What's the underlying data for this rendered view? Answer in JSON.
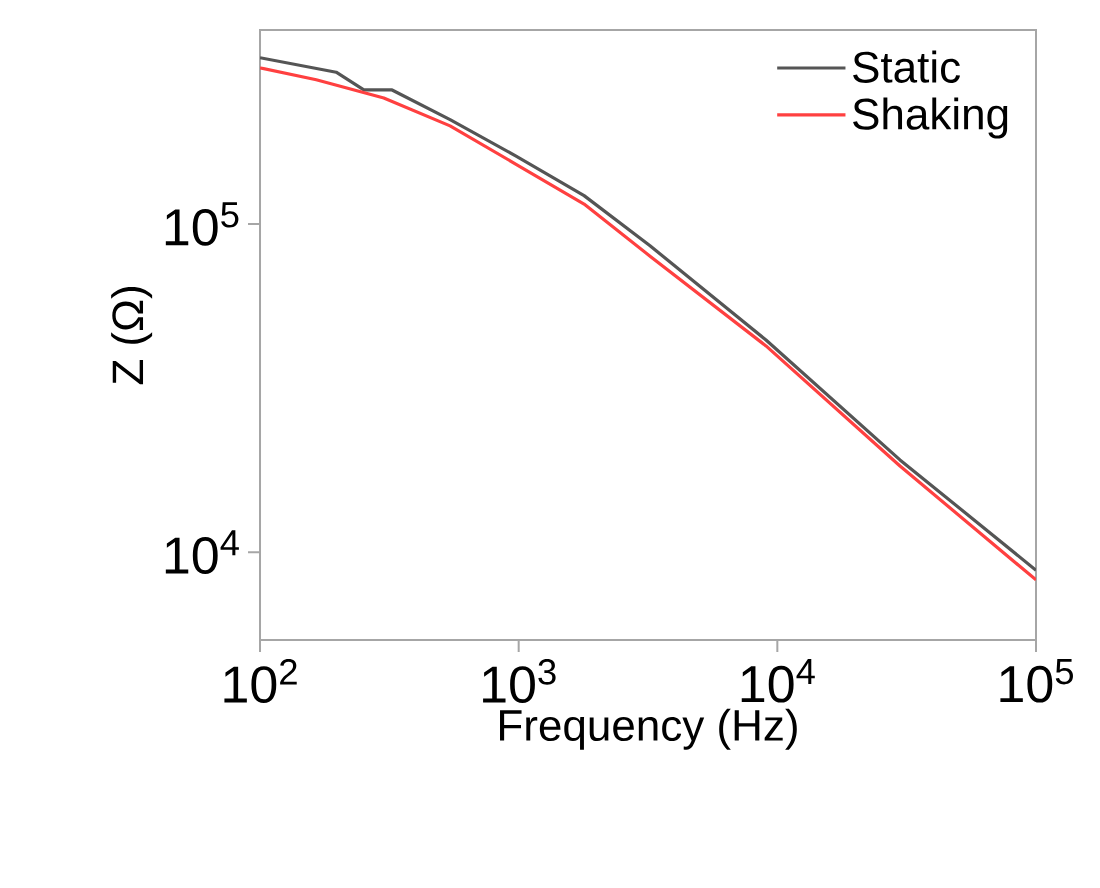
{
  "chart_data": {
    "type": "line",
    "xlabel": "Frequency (Hz)",
    "ylabel": "Z (Ω)",
    "log": "xy",
    "grid": false,
    "legend": "top right",
    "marker": "none",
    "line_style": "solid",
    "xlim": [
      100,
      100000
    ],
    "ylim": [
      5400,
      390000
    ],
    "xticks": [
      {
        "value": 100,
        "label": "10$^{2}$"
      },
      {
        "value": 1000,
        "label": "10$^{3}$"
      },
      {
        "value": 10000,
        "label": "10$^{4}$"
      },
      {
        "value": 100000,
        "label": "10$^{5}$"
      }
    ],
    "yticks": [
      {
        "value": 10000,
        "label": "10$^{4}$"
      },
      {
        "value": 100000,
        "label": "10$^{5}$"
      }
    ],
    "series": [
      {
        "name": "Static",
        "color": "#555555",
        "x": [
          100,
          197,
          252,
          324,
          543,
          977,
          1790,
          3220,
          9040,
          29800,
          100000
        ],
        "values": [
          321000,
          290000,
          256000,
          256000,
          208000,
          161000,
          122000,
          85800,
          44300,
          19100,
          8810
        ]
      },
      {
        "name": "Shaking",
        "color": "#ff4040",
        "x": [
          100,
          165,
          301,
          543,
          977,
          1790,
          3220,
          9040,
          29800,
          100000
        ],
        "values": [
          299000,
          275000,
          242000,
          199000,
          152000,
          115000,
          79800,
          42500,
          18300,
          8230
        ]
      }
    ]
  }
}
